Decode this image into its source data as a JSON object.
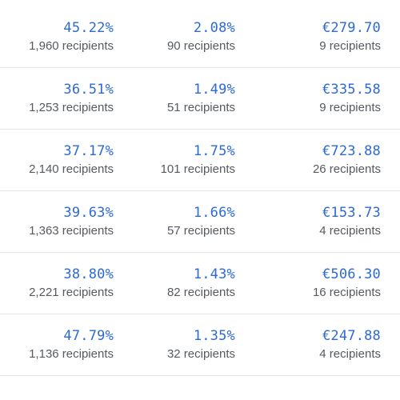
{
  "rows": [
    {
      "open_rate": "45.22%",
      "open_recipients": "1,960 recipients",
      "click_rate": "2.08%",
      "click_recipients": "90 recipients",
      "revenue": "€279.70",
      "revenue_recipients": "9 recipients"
    },
    {
      "open_rate": "36.51%",
      "open_recipients": "1,253 recipients",
      "click_rate": "1.49%",
      "click_recipients": "51 recipients",
      "revenue": "€335.58",
      "revenue_recipients": "9 recipients"
    },
    {
      "open_rate": "37.17%",
      "open_recipients": "2,140 recipients",
      "click_rate": "1.75%",
      "click_recipients": "101 recipients",
      "revenue": "€723.88",
      "revenue_recipients": "26 recipients"
    },
    {
      "open_rate": "39.63%",
      "open_recipients": "1,363 recipients",
      "click_rate": "1.66%",
      "click_recipients": "57 recipients",
      "revenue": "€153.73",
      "revenue_recipients": "4 recipients"
    },
    {
      "open_rate": "38.80%",
      "open_recipients": "2,221 recipients",
      "click_rate": "1.43%",
      "click_recipients": "82 recipients",
      "revenue": "€506.30",
      "revenue_recipients": "16 recipients"
    },
    {
      "open_rate": "47.79%",
      "open_recipients": "1,136 recipients",
      "click_rate": "1.35%",
      "click_recipients": "32 recipients",
      "revenue": "€247.88",
      "revenue_recipients": "4 recipients"
    }
  ],
  "colors": {
    "value": "#2d6ad3",
    "subtext": "#555a60",
    "divider": "#e6e6e6"
  }
}
